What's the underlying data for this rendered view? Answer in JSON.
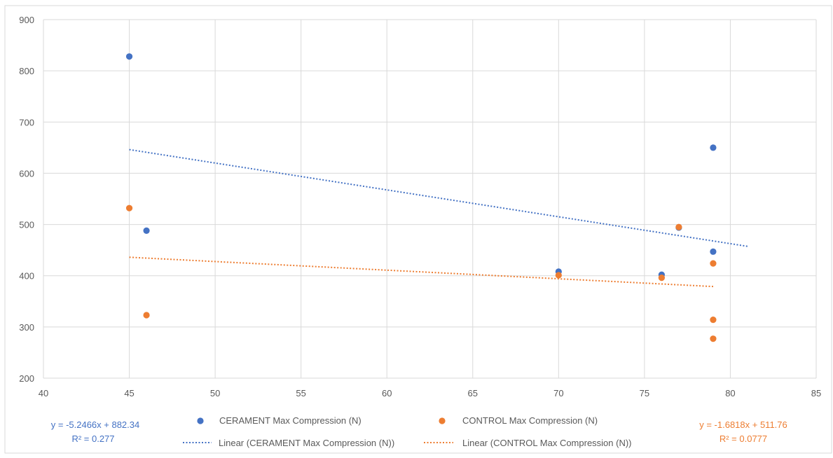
{
  "chart_data": {
    "type": "scatter",
    "title": "",
    "xlabel": "",
    "ylabel": "",
    "xlim": [
      40,
      85
    ],
    "ylim": [
      200,
      900
    ],
    "x_ticks": [
      40,
      45,
      50,
      55,
      60,
      65,
      70,
      75,
      80,
      85
    ],
    "y_ticks": [
      200,
      300,
      400,
      500,
      600,
      700,
      800,
      900
    ],
    "grid": true,
    "legend_position": "bottom",
    "series": [
      {
        "name": "CERAMENT Max Compression (N)",
        "color": "#4472c4",
        "points": [
          [
            45,
            828
          ],
          [
            46,
            488
          ],
          [
            70,
            408
          ],
          [
            76,
            402
          ],
          [
            77,
            494
          ],
          [
            79,
            650
          ],
          [
            79,
            447
          ]
        ]
      },
      {
        "name": "CONTROL Max Compression (N)",
        "color": "#ed7d31",
        "points": [
          [
            45,
            532
          ],
          [
            46,
            323
          ],
          [
            70,
            401
          ],
          [
            76,
            396
          ],
          [
            77,
            495
          ],
          [
            79,
            424
          ],
          [
            79,
            314
          ],
          [
            79,
            277
          ]
        ]
      }
    ],
    "trendlines": [
      {
        "name": "Linear (CERAMENT Max Compression (N))",
        "color": "#4472c4",
        "slope": -5.2466,
        "intercept": 882.34,
        "x_range": [
          45,
          81
        ],
        "equation": "y = -5.2466x + 882.34",
        "r2": "R² = 0.277"
      },
      {
        "name": "Linear (CONTROL Max Compression (N))",
        "color": "#ed7d31",
        "slope": -1.6818,
        "intercept": 511.76,
        "x_range": [
          45,
          79
        ],
        "equation": "y = -1.6818x + 511.76",
        "r2": "R² = 0.0777"
      }
    ]
  }
}
